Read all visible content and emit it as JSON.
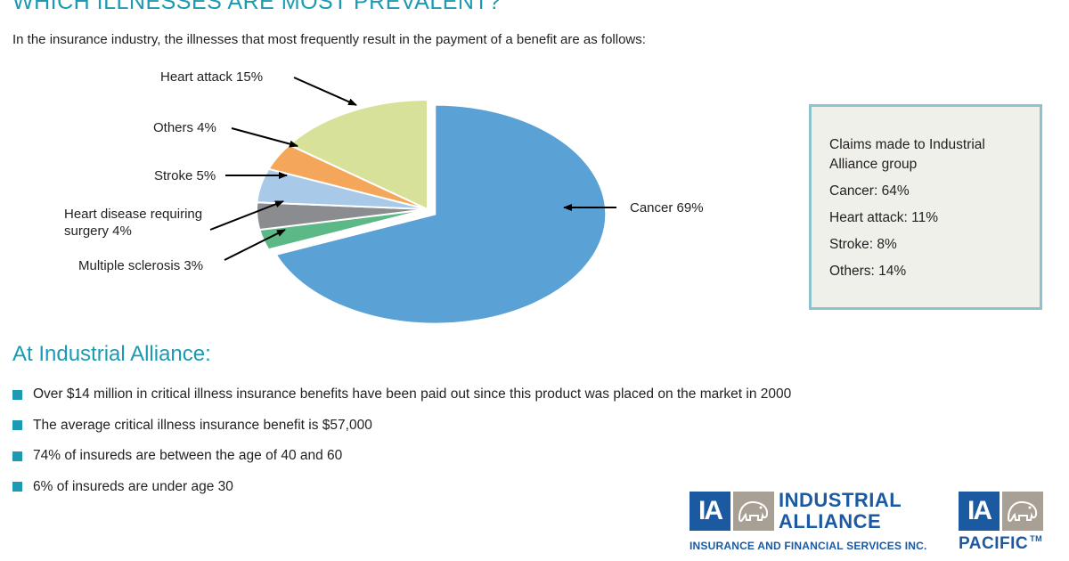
{
  "header": {
    "title": "WHICH ILLNESSES ARE MOST PREVALENT?",
    "intro": "In the insurance industry, the illnesses that most frequently result in the payment of a benefit are as follows:"
  },
  "chart_data": {
    "type": "pie",
    "title": "",
    "slices": [
      {
        "label": "Cancer 69%",
        "value": 69,
        "color": "#5aa1d6"
      },
      {
        "label": "Multiple sclerosis 3%",
        "value": 3,
        "color": "#5cb887"
      },
      {
        "label": "Heart disease requiring surgery 4%",
        "value": 4,
        "color": "#8a8c8f"
      },
      {
        "label": "Stroke 5%",
        "value": 5,
        "color": "#a9c9e9"
      },
      {
        "label": "Others 4%",
        "value": 4,
        "color": "#f4a65a"
      },
      {
        "label": "Heart attack 15%",
        "value": 15,
        "color": "#d8e19a"
      }
    ],
    "exploded": "Cancer 69%"
  },
  "claims_box": {
    "title": "Claims made to Industrial Alliance group",
    "lines": [
      "Cancer: 64%",
      "Heart attack: 11%",
      "Stroke: 8%",
      "Others: 14%"
    ]
  },
  "section": {
    "heading": "At Industrial Alliance:",
    "bullets": [
      "Over $14 million in critical illness insurance benefits have been paid out since this product was placed on the market in 2000",
      "The average critical illness insurance benefit is $57,000",
      "74% of insureds are between the age of 40 and 60",
      "6% of insureds are under age 30"
    ]
  },
  "logos": {
    "ia_mark": "IA",
    "industrial_alliance": {
      "line1": "INDUSTRIAL",
      "line2": "ALLIANCE",
      "subtitle": "INSURANCE AND FINANCIAL SERVICES INC.",
      "icon": "elephant-icon"
    },
    "pacific": {
      "name": "PACIFIC",
      "tm": "TM",
      "icon": "elephant-icon"
    },
    "brand_color": "#1b5aa1"
  }
}
